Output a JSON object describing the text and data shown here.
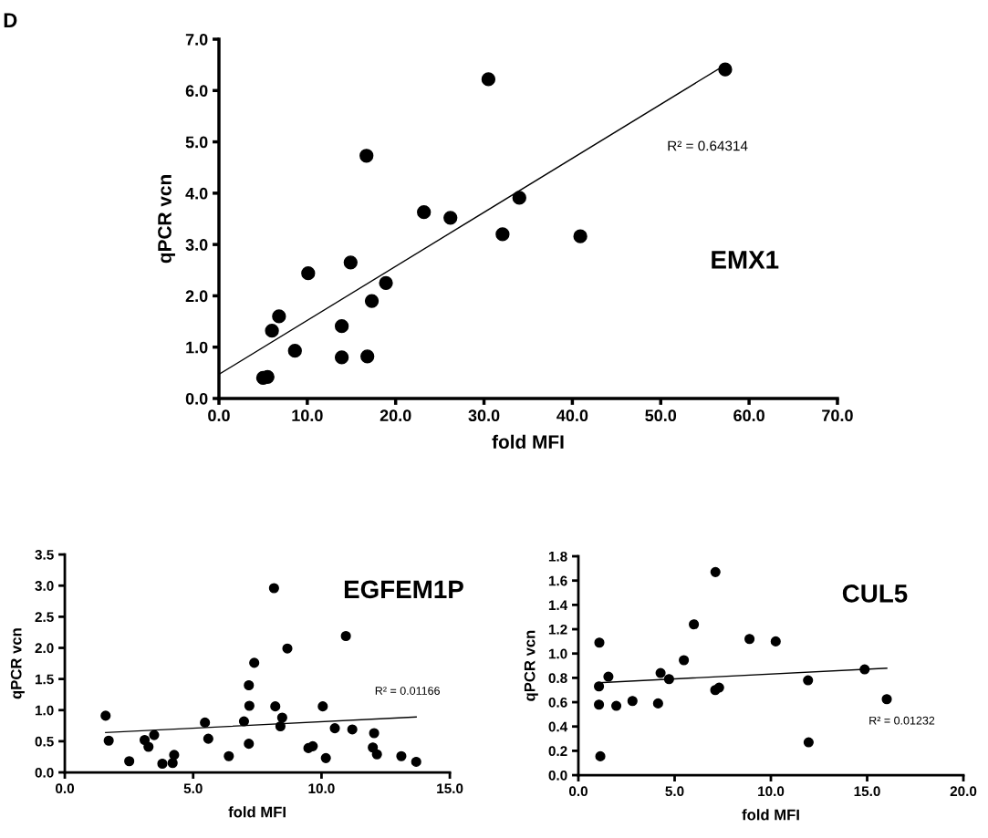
{
  "chart_data": [
    {
      "type": "scatter",
      "title": "EMX1",
      "xlabel": "fold MFI",
      "ylabel": "qPCR vcn",
      "annotations": [
        "D",
        "R² = 0.64314"
      ],
      "grid": false,
      "xlim": [
        0,
        70
      ],
      "xticks": [
        {
          "value": 0,
          "label": "0.0"
        },
        {
          "value": 10,
          "label": "10.0"
        },
        {
          "value": 20,
          "label": "20.0"
        },
        {
          "value": 30,
          "label": "30.0"
        },
        {
          "value": 40,
          "label": "40.0"
        },
        {
          "value": 50,
          "label": "50.0"
        },
        {
          "value": 60,
          "label": "60.0"
        },
        {
          "value": 70,
          "label": "70.0"
        }
      ],
      "ylim": [
        0,
        7
      ],
      "yticks": [
        {
          "value": 0,
          "label": "0.0"
        },
        {
          "value": 1,
          "label": "1.0"
        },
        {
          "value": 2,
          "label": "2.0"
        },
        {
          "value": 3,
          "label": "3.0"
        },
        {
          "value": 4,
          "label": "4.0"
        },
        {
          "value": 5,
          "label": "5.0"
        },
        {
          "value": 6,
          "label": "6.0"
        },
        {
          "value": 7,
          "label": "7.0"
        }
      ],
      "series": [
        {
          "marker": "circle",
          "color": "#000000",
          "x": [
            5.0,
            5.5,
            6.0,
            6.8,
            8.6,
            10.1,
            13.9,
            13.9,
            14.9,
            16.7,
            16.8,
            17.3,
            18.9,
            23.2,
            26.2,
            30.5,
            32.1,
            34.0,
            40.9,
            57.3
          ],
          "values": [
            0.4,
            0.42,
            1.32,
            1.6,
            0.93,
            2.44,
            1.41,
            0.8,
            2.65,
            4.73,
            0.82,
            1.9,
            2.25,
            3.63,
            3.52,
            6.22,
            3.2,
            3.91,
            3.16,
            6.41
          ]
        },
        {
          "type": "line",
          "color": "#000000",
          "x": [
            0,
            57.3
          ],
          "values": [
            0.47,
            6.5
          ]
        }
      ]
    },
    {
      "type": "scatter",
      "title": "EGFEM1P",
      "xlabel": "fold MFI",
      "ylabel": "qPCR vcn",
      "annotations": [
        "R² = 0.01166"
      ],
      "grid": false,
      "xlim": [
        0,
        15
      ],
      "xticks": [
        {
          "value": 0,
          "label": "0.0"
        },
        {
          "value": 5,
          "label": "5.0"
        },
        {
          "value": 10,
          "label": "10.0"
        },
        {
          "value": 15,
          "label": "15.0"
        }
      ],
      "ylim": [
        0,
        3.5
      ],
      "yticks": [
        {
          "value": 0,
          "label": "0.0"
        },
        {
          "value": 0.5,
          "label": "0.5"
        },
        {
          "value": 1,
          "label": "1.0"
        },
        {
          "value": 1.5,
          "label": "1.5"
        },
        {
          "value": 2,
          "label": "2.0"
        },
        {
          "value": 2.5,
          "label": "2.5"
        },
        {
          "value": 3,
          "label": "3.0"
        },
        {
          "value": 3.5,
          "label": "3.5"
        }
      ],
      "series": [
        {
          "marker": "circle",
          "color": "#000000",
          "x": [
            1.59,
            1.71,
            2.51,
            3.11,
            3.26,
            3.48,
            3.8,
            4.2,
            4.26,
            5.46,
            5.59,
            6.39,
            6.98,
            7.17,
            7.17,
            7.19,
            7.38,
            8.15,
            8.2,
            8.4,
            8.47,
            8.67,
            9.49,
            9.66,
            10.05,
            10.17,
            10.52,
            10.95,
            11.2,
            12.05,
            12.0,
            12.16,
            13.11,
            13.69
          ],
          "values": [
            0.91,
            0.51,
            0.18,
            0.52,
            0.41,
            0.6,
            0.14,
            0.15,
            0.28,
            0.8,
            0.54,
            0.26,
            0.82,
            0.46,
            1.4,
            1.07,
            1.76,
            2.96,
            1.06,
            0.74,
            0.88,
            1.99,
            0.39,
            0.42,
            1.06,
            0.23,
            0.71,
            2.19,
            0.69,
            0.63,
            0.4,
            0.29,
            0.26,
            0.17
          ]
        },
        {
          "type": "line",
          "color": "#000000",
          "x": [
            1.59,
            13.69
          ],
          "values": [
            0.64,
            0.89
          ]
        }
      ]
    },
    {
      "type": "scatter",
      "title": "CUL5",
      "xlabel": "fold MFI",
      "ylabel": "qPCR vcn",
      "annotations": [
        "R² = 0.01232"
      ],
      "grid": false,
      "xlim": [
        0,
        20
      ],
      "xticks": [
        {
          "value": 0,
          "label": "0.0"
        },
        {
          "value": 5,
          "label": "5.0"
        },
        {
          "value": 10,
          "label": "10.0"
        },
        {
          "value": 15,
          "label": "15.0"
        },
        {
          "value": 20,
          "label": "20.0"
        }
      ],
      "ylim": [
        0,
        1.8
      ],
      "yticks": [
        {
          "value": 0,
          "label": "0.0"
        },
        {
          "value": 0.2,
          "label": "0.2"
        },
        {
          "value": 0.4,
          "label": "0.4"
        },
        {
          "value": 0.6,
          "label": "0.6"
        },
        {
          "value": 0.8,
          "label": "0.8"
        },
        {
          "value": 1.0,
          "label": "1.0"
        },
        {
          "value": 1.2,
          "label": "1.2"
        },
        {
          "value": 1.4,
          "label": "1.4"
        },
        {
          "value": 1.6,
          "label": "1.6"
        },
        {
          "value": 1.8,
          "label": "1.8"
        }
      ],
      "series": [
        {
          "marker": "circle",
          "color": "#000000",
          "x": [
            1.09,
            1.07,
            1.07,
            1.14,
            1.56,
            1.97,
            2.81,
            4.14,
            4.27,
            4.71,
            5.48,
            6.0,
            7.12,
            7.11,
            7.31,
            8.89,
            10.25,
            11.93,
            11.96,
            14.87,
            16.02
          ],
          "values": [
            1.09,
            0.73,
            0.58,
            0.155,
            0.81,
            0.57,
            0.61,
            0.59,
            0.84,
            0.79,
            0.945,
            1.24,
            1.67,
            0.7,
            0.72,
            1.12,
            1.1,
            0.78,
            0.27,
            0.87,
            0.625
          ]
        },
        {
          "type": "line",
          "color": "#000000",
          "x": [
            1.07,
            16.02
          ],
          "values": [
            0.76,
            0.88
          ]
        }
      ]
    }
  ]
}
